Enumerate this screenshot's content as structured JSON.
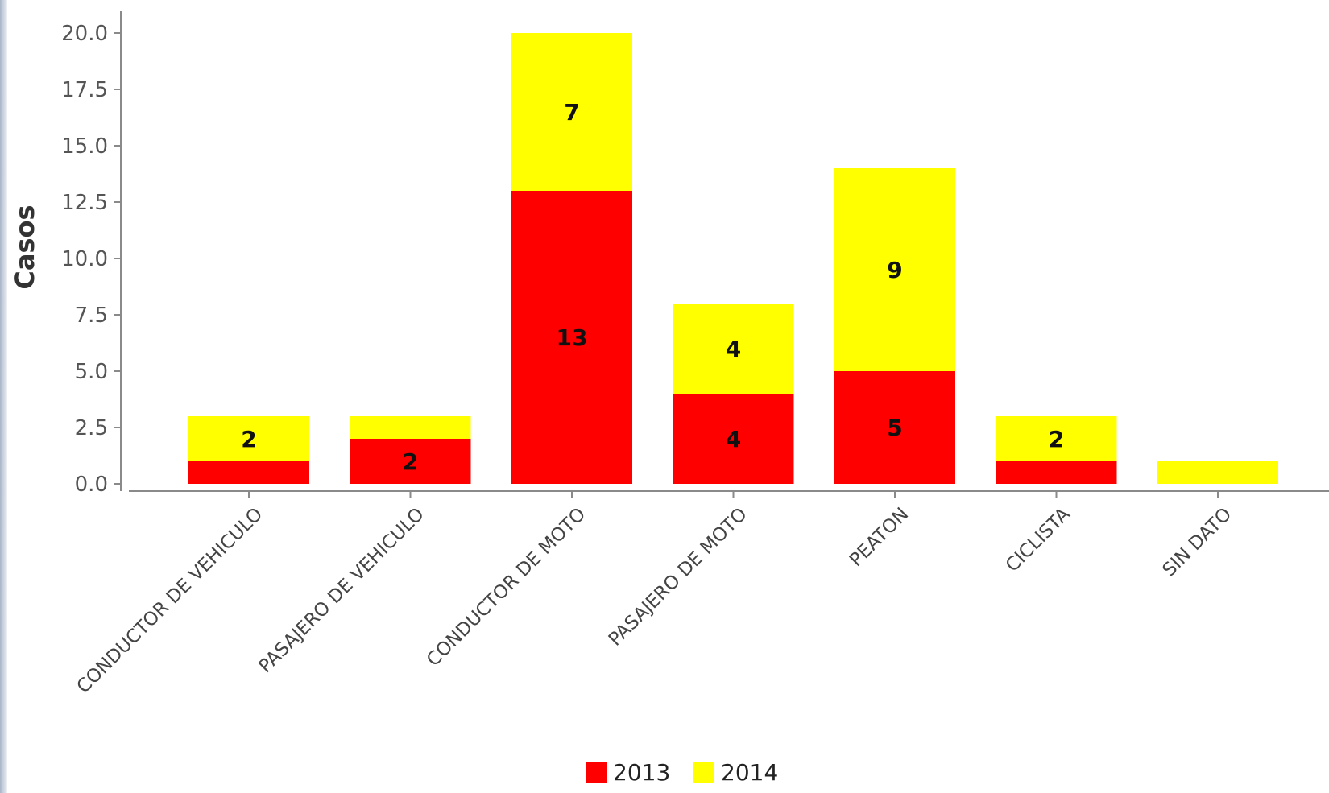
{
  "chart_data": {
    "type": "bar",
    "stacked": true,
    "categories": [
      "CONDUCTOR DE VEHICULO",
      "PASAJERO DE VEHICULO",
      "CONDUCTOR DE MOTO",
      "PASAJERO DE MOTO",
      "PEATON",
      "CICLISTA",
      "SIN DATO"
    ],
    "series": [
      {
        "name": "2013",
        "color": "#ff0000",
        "values": [
          1,
          2,
          13,
          4,
          5,
          1,
          0
        ],
        "labels": [
          "",
          "2",
          "13",
          "4",
          "5",
          "",
          ""
        ]
      },
      {
        "name": "2014",
        "color": "#ffff00",
        "values": [
          2,
          1,
          7,
          4,
          9,
          2,
          1
        ],
        "labels": [
          "2",
          "",
          "7",
          "4",
          "9",
          "2",
          ""
        ]
      }
    ],
    "ylabel": "Casos",
    "xlabel": "",
    "title": "",
    "ylim": [
      0,
      20
    ],
    "yticks": [
      "0.0",
      "2.5",
      "5.0",
      "7.5",
      "10.0",
      "12.5",
      "15.0",
      "17.5",
      "20.0"
    ],
    "grid": false,
    "legend_position": "bottom-center"
  }
}
